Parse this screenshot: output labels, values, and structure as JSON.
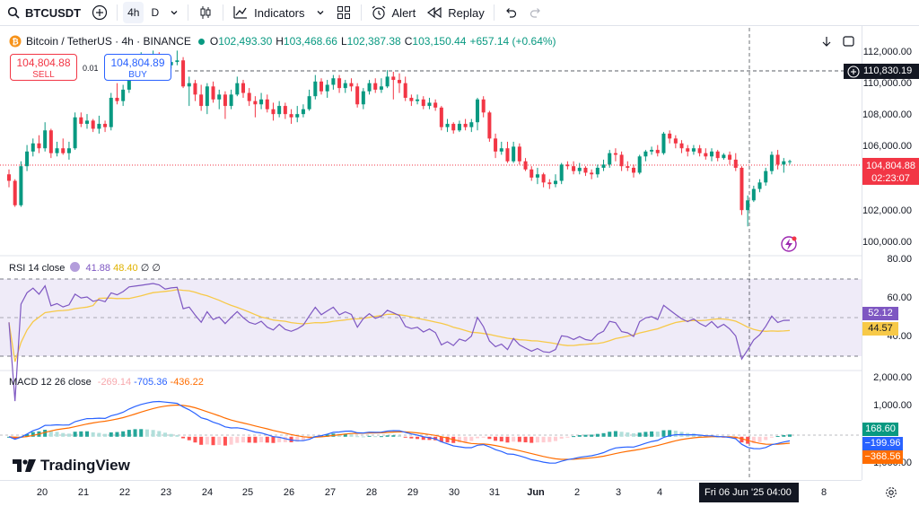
{
  "toolbar": {
    "symbol": "BTCUSDT",
    "timeframe_active": "4h",
    "timeframe_other": "D",
    "indicators_label": "Indicators",
    "alert_label": "Alert",
    "replay_label": "Replay"
  },
  "legend": {
    "title": "Bitcoin / TetherUS · 4h · BINANCE",
    "o_label": "O",
    "o_value": "102,493.30",
    "h_label": "H",
    "h_value": "103,468.66",
    "l_label": "L",
    "l_value": "102,387.38",
    "c_label": "C",
    "c_value": "103,150.44",
    "change": "+657.14 (+0.64%)"
  },
  "trade": {
    "sell_price": "104,804.88",
    "sell_label": "SELL",
    "buy_price": "104,804.89",
    "buy_label": "BUY",
    "spread": "0.01"
  },
  "price_axis": {
    "ticks": [
      "112,000.00",
      "110,000.00",
      "108,000.00",
      "106,000.00",
      "102,000.00",
      "100,000.00"
    ],
    "crosshair_price": "110,830.19",
    "last_price": "104,804.88",
    "countdown": "02:23:07"
  },
  "rsi": {
    "label": "RSI 14 close",
    "value1": "41.88",
    "value2": "48.40",
    "extra1": "∅",
    "extra2": "∅",
    "ticks": [
      "80.00",
      "60.00",
      "40.00"
    ],
    "tag_rsi": "52.12",
    "tag_ma": "44.57"
  },
  "macd": {
    "label": "MACD 12 26 close",
    "hist": "-269.14",
    "macd": "-705.36",
    "signal": "-436.22",
    "ticks": [
      "2,000.00",
      "1,000.00",
      "−1,000.00"
    ],
    "tag_hist": "168.60",
    "tag_macd": "−199.96",
    "tag_signal": "−368.56"
  },
  "time_axis": {
    "ticks": [
      "20",
      "21",
      "22",
      "23",
      "24",
      "25",
      "26",
      "27",
      "28",
      "29",
      "30",
      "31",
      "Jun",
      "2",
      "3",
      "4",
      "8"
    ],
    "crosshair": "Fri 06 Jun '25   04:00"
  },
  "brand": {
    "name": "TradingView"
  },
  "colors": {
    "up": "#089981",
    "down": "#f23645",
    "rsi": "#7e57c2",
    "rsi_ma": "#f7c948",
    "macd": "#2962ff",
    "signal": "#ff6d00"
  },
  "chart_data": {
    "type": "candlestick",
    "price_range": [
      99000,
      113000
    ],
    "candles": [
      [
        104000,
        103600,
        104300,
        103200
      ],
      [
        103600,
        102100,
        103700,
        102000
      ],
      [
        102100,
        104500,
        104800,
        102000
      ],
      [
        104500,
        105400,
        105800,
        104200
      ],
      [
        105400,
        105900,
        106200,
        105100
      ],
      [
        105900,
        105600,
        106400,
        105300
      ],
      [
        105600,
        106700,
        107200,
        105400
      ],
      [
        106700,
        105300,
        106800,
        105000
      ],
      [
        105300,
        105600,
        106000,
        105100
      ],
      [
        105600,
        105300,
        106200,
        105200
      ],
      [
        105300,
        105600,
        106000,
        104900
      ],
      [
        105600,
        107500,
        107800,
        105500
      ],
      [
        107500,
        107100,
        107800,
        106900
      ],
      [
        107100,
        107300,
        107700,
        106800
      ],
      [
        107300,
        106800,
        107400,
        106600
      ],
      [
        106800,
        107100,
        107600,
        106500
      ],
      [
        107100,
        106900,
        107300,
        106600
      ],
      [
        106900,
        108700,
        109000,
        106700
      ],
      [
        108700,
        108500,
        109600,
        108300
      ],
      [
        108500,
        109200,
        109500,
        108200
      ],
      [
        109200,
        110300,
        110500,
        109000
      ],
      [
        110300,
        110500,
        111000,
        110000
      ],
      [
        110500,
        110700,
        111500,
        110300
      ],
      [
        110700,
        110900,
        111200,
        110500
      ],
      [
        110900,
        111100,
        111600,
        110700
      ],
      [
        111100,
        111000,
        111500,
        110600
      ],
      [
        111000,
        110700,
        111300,
        110400
      ],
      [
        110700,
        110900,
        111200,
        110500
      ],
      [
        110900,
        111000,
        111600,
        110700
      ],
      [
        111000,
        109400,
        111200,
        109300
      ],
      [
        109400,
        109600,
        110000,
        108200
      ],
      [
        109600,
        108900,
        109800,
        108500
      ],
      [
        108900,
        108200,
        109500,
        107900
      ],
      [
        108200,
        109400,
        109600,
        107700
      ],
      [
        109400,
        108600,
        109700,
        108400
      ],
      [
        108600,
        108900,
        109200,
        108000
      ],
      [
        108900,
        108200,
        109100,
        107400
      ],
      [
        108200,
        108900,
        109200,
        108000
      ],
      [
        108900,
        109600,
        110000,
        108800
      ],
      [
        109600,
        109000,
        109800,
        108700
      ],
      [
        109000,
        108500,
        109300,
        108200
      ],
      [
        108500,
        108300,
        108800,
        107500
      ],
      [
        108300,
        108600,
        109000,
        108000
      ],
      [
        108600,
        108000,
        108900,
        107800
      ],
      [
        108000,
        107700,
        108400,
        107300
      ],
      [
        107700,
        108200,
        108500,
        107500
      ],
      [
        108200,
        107700,
        108400,
        107400
      ],
      [
        107700,
        107500,
        108000,
        107100
      ],
      [
        107500,
        107700,
        108200,
        107200
      ],
      [
        107700,
        108000,
        108300,
        107500
      ],
      [
        108000,
        108800,
        109200,
        107900
      ],
      [
        108800,
        109700,
        110100,
        108600
      ],
      [
        109700,
        109100,
        109900,
        108900
      ],
      [
        109100,
        109500,
        109800,
        108700
      ],
      [
        109500,
        109900,
        110100,
        109200
      ],
      [
        109900,
        109300,
        110100,
        109000
      ],
      [
        109300,
        109600,
        109800,
        109000
      ],
      [
        109600,
        109400,
        109900,
        109100
      ],
      [
        109400,
        108300,
        109600,
        108100
      ],
      [
        108300,
        109100,
        109300,
        108000
      ],
      [
        109100,
        109600,
        109800,
        108900
      ],
      [
        109600,
        109200,
        109900,
        109000
      ],
      [
        109200,
        109400,
        109900,
        109000
      ],
      [
        109400,
        110000,
        110400,
        109300
      ],
      [
        110000,
        109800,
        110300,
        108600
      ],
      [
        109800,
        109600,
        110200,
        109000
      ],
      [
        109600,
        108700,
        110000,
        108500
      ],
      [
        108700,
        108500,
        108900,
        108200
      ],
      [
        108500,
        108600,
        108900,
        108300
      ],
      [
        108600,
        108200,
        108800,
        108000
      ],
      [
        108200,
        108400,
        108700,
        108000
      ],
      [
        108400,
        108100,
        108600,
        107900
      ],
      [
        108100,
        106900,
        108200,
        106700
      ],
      [
        106900,
        107100,
        107400,
        106600
      ],
      [
        107100,
        106700,
        107200,
        106500
      ],
      [
        106700,
        107100,
        107300,
        106600
      ],
      [
        107100,
        106900,
        107400,
        106700
      ],
      [
        106900,
        107200,
        107400,
        106600
      ],
      [
        107200,
        108600,
        108700,
        106700
      ],
      [
        108600,
        107800,
        108800,
        107500
      ],
      [
        107800,
        106200,
        107900,
        106000
      ],
      [
        106200,
        105400,
        106500,
        105000
      ],
      [
        105400,
        105600,
        106000,
        105200
      ],
      [
        105600,
        104800,
        106000,
        104700
      ],
      [
        104800,
        105700,
        106000,
        104700
      ],
      [
        105700,
        104800,
        105900,
        104600
      ],
      [
        104800,
        104300,
        105000,
        104200
      ],
      [
        104300,
        103800,
        104500,
        103600
      ],
      [
        103800,
        104000,
        104400,
        103400
      ],
      [
        104000,
        103500,
        104100,
        103200
      ],
      [
        103500,
        103400,
        103700,
        103100
      ],
      [
        103400,
        103600,
        104000,
        103200
      ],
      [
        103600,
        104600,
        104700,
        103400
      ],
      [
        104600,
        104500,
        104800,
        104300
      ],
      [
        104500,
        104200,
        104800,
        104000
      ],
      [
        104200,
        104400,
        104700,
        104000
      ],
      [
        104400,
        104100,
        104500,
        103900
      ],
      [
        104100,
        104000,
        104300,
        103700
      ],
      [
        104000,
        104400,
        104600,
        103800
      ],
      [
        104400,
        104600,
        104900,
        104200
      ],
      [
        104600,
        105300,
        105500,
        104400
      ],
      [
        105300,
        105200,
        105600,
        104800
      ],
      [
        105200,
        104500,
        105400,
        104200
      ],
      [
        104500,
        104400,
        104800,
        104200
      ],
      [
        104400,
        104100,
        104600,
        103800
      ],
      [
        104100,
        105100,
        105200,
        104000
      ],
      [
        105100,
        105400,
        105500,
        104800
      ],
      [
        105400,
        105500,
        105700,
        105200
      ],
      [
        105500,
        105300,
        105800,
        105100
      ],
      [
        105300,
        106500,
        106600,
        105200
      ],
      [
        106500,
        106200,
        106700,
        105900
      ],
      [
        106200,
        105900,
        106400,
        105600
      ],
      [
        105900,
        105600,
        106100,
        105300
      ],
      [
        105600,
        105400,
        105800,
        105100
      ],
      [
        105400,
        105600,
        105800,
        105200
      ],
      [
        105600,
        105300,
        105800,
        105100
      ],
      [
        105300,
        105100,
        105600,
        104900
      ],
      [
        105100,
        105400,
        105600,
        104800
      ],
      [
        105400,
        105000,
        105500,
        104800
      ],
      [
        105000,
        105200,
        105300,
        104900
      ],
      [
        105200,
        104900,
        105400,
        104600
      ],
      [
        104900,
        104400,
        105300,
        104200
      ],
      [
        104400,
        101800,
        104500,
        101500
      ],
      [
        101800,
        102400,
        102700,
        100800
      ],
      [
        102400,
        103100,
        103300,
        102300
      ],
      [
        103100,
        103500,
        103700,
        102900
      ],
      [
        103500,
        104200,
        104400,
        103300
      ],
      [
        104200,
        105200,
        105400,
        104000
      ],
      [
        105200,
        104600,
        105500,
        104300
      ],
      [
        104600,
        104800,
        105000,
        104100
      ],
      [
        104800,
        104805,
        104900,
        104600
      ]
    ],
    "rsi": {
      "range": [
        0,
        100
      ],
      "upper_band": 70,
      "lower_band": 30,
      "middle": 50
    },
    "macd": {
      "range": [
        -2000,
        3000
      ]
    }
  }
}
